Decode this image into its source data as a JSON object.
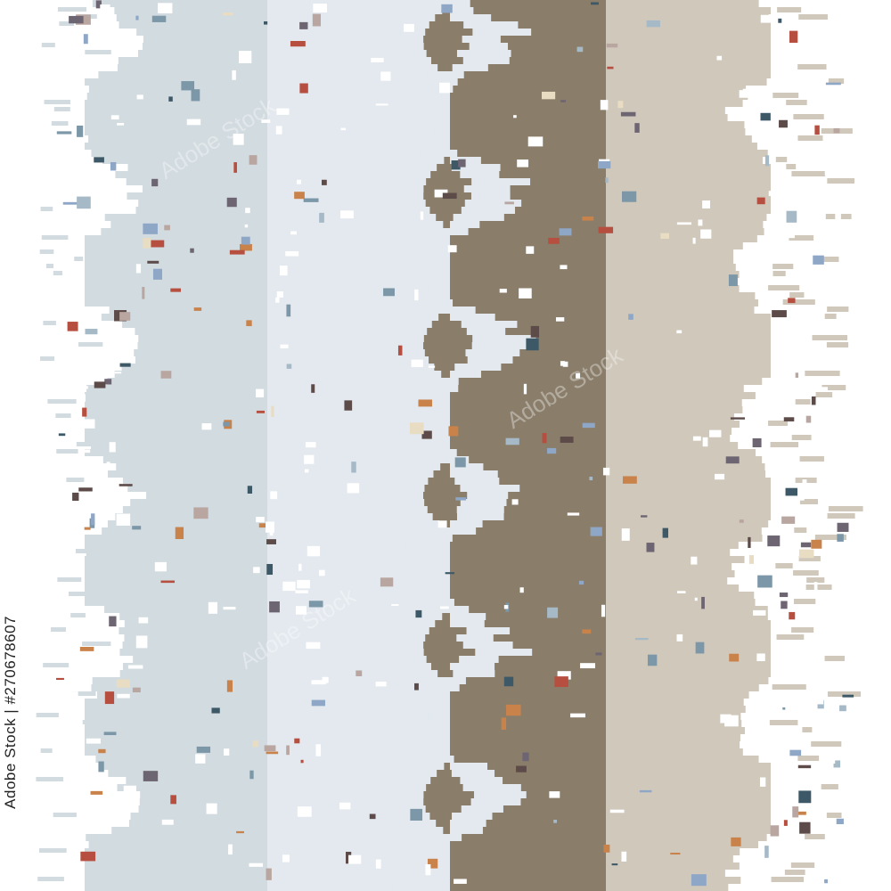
{
  "artwork": {
    "palette": {
      "blue_light": "#d2dbe0",
      "blue_pale": "#e3e9ee",
      "taupe": "#8a7e6b",
      "sand": "#cfc8bb",
      "white": "#ffffff",
      "accents": [
        "#3d5866",
        "#c9824a",
        "#7c97a7",
        "#b9a6a0",
        "#5d4b49",
        "#a5b9c7",
        "#e8ddc3",
        "#6e6572",
        "#8fa7c7",
        "#b64f3f"
      ]
    },
    "stock_id": "270678607",
    "stock_label": "Adobe Stock",
    "side_caption": "Adobe Stock | #270678607"
  }
}
